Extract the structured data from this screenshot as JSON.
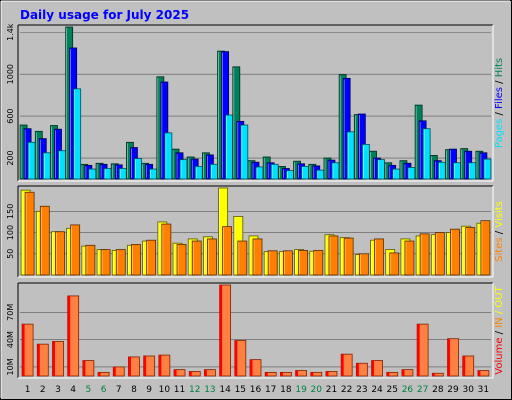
{
  "chart_data": {
    "type": "bar",
    "title": "Daily usage for July 2025",
    "categories": [
      "1",
      "2",
      "3",
      "4",
      "5",
      "6",
      "7",
      "8",
      "9",
      "10",
      "11",
      "12",
      "13",
      "14",
      "15",
      "16",
      "17",
      "18",
      "19",
      "20",
      "21",
      "22",
      "23",
      "24",
      "25",
      "26",
      "27",
      "28",
      "29",
      "30",
      "31"
    ],
    "weekend_days": [
      "5",
      "6",
      "12",
      "13",
      "19",
      "20",
      "26",
      "27"
    ],
    "colors": {
      "background": "#c0c0c0",
      "border_light": "#ffffff",
      "border_dark": "#000000",
      "title": "#0000ff",
      "tick_label": "#000000",
      "weekend_label": "#008040",
      "hits": "#00805a",
      "files": "#0000ff",
      "pages": "#00e0ff",
      "visits": "#ffff00",
      "sites": "#ff8000",
      "kbin": "#ff8000",
      "kbout": "#ffff00",
      "volume": "#ff0000",
      "volume_fill": "#ff8040"
    },
    "panels": [
      {
        "id": "hits-files-pages",
        "y_ticks": [
          "1.4k",
          "1000",
          "600",
          "200"
        ],
        "y_tick_values": [
          1400,
          1000,
          600,
          200
        ],
        "ylim": [
          0,
          1450
        ],
        "legend": [
          {
            "text": "Pages",
            "color_key": "pages"
          },
          {
            "text": " / ",
            "color_key": "tick_label"
          },
          {
            "text": "Files",
            "color_key": "files"
          },
          {
            "text": " / ",
            "color_key": "tick_label"
          },
          {
            "text": "Hits",
            "color_key": "hits"
          }
        ],
        "series": [
          {
            "name": "Hits",
            "color_key": "hits",
            "values": [
              515,
              455,
              510,
              1450,
              140,
              150,
              145,
              350,
              150,
              975,
              285,
              210,
              250,
              1220,
              1070,
              175,
              210,
              120,
              170,
              140,
              200,
              995,
              615,
              265,
              155,
              175,
              705,
              225,
              280,
              290,
              265
            ]
          },
          {
            "name": "Files",
            "color_key": "files",
            "values": [
              480,
              385,
              475,
              1250,
              130,
              140,
              135,
              300,
              140,
              925,
              250,
              190,
              230,
              1215,
              550,
              160,
              155,
              100,
              145,
              125,
              180,
              960,
              620,
              200,
              130,
              150,
              555,
              175,
              285,
              265,
              250
            ]
          },
          {
            "name": "Pages",
            "color_key": "pages",
            "values": [
              350,
              250,
              270,
              860,
              95,
              100,
              100,
              195,
              95,
              440,
              185,
              120,
              140,
              610,
              515,
              115,
              140,
              80,
              120,
              85,
              155,
              450,
              330,
              185,
              95,
              110,
              480,
              160,
              155,
              155,
              190
            ]
          }
        ]
      },
      {
        "id": "visits-sites",
        "y_ticks": [
          "150",
          "100",
          "50"
        ],
        "y_tick_values": [
          150,
          100,
          50
        ],
        "ylim": [
          0,
          205
        ],
        "legend": [
          {
            "text": "Sites",
            "color_key": "sites"
          },
          {
            "text": " / ",
            "color_key": "tick_label"
          },
          {
            "text": "Visits",
            "color_key": "visits"
          }
        ],
        "series": [
          {
            "name": "Visits",
            "color_key": "visits",
            "values": [
              200,
              150,
              102,
              110,
              68,
              60,
              58,
              70,
              80,
              125,
              75,
              85,
              90,
              205,
              138,
              92,
              55,
              55,
              60,
              56,
              95,
              88,
              48,
              82,
              60,
              85,
              92,
              95,
              100,
              115,
              122
            ]
          },
          {
            "name": "Sites",
            "color_key": "sites",
            "values": [
              195,
              162,
              102,
              118,
              70,
              60,
              60,
              72,
              82,
              120,
              72,
              80,
              85,
              114,
              80,
              85,
              57,
              57,
              58,
              58,
              92,
              87,
              50,
              85,
              52,
              80,
              97,
              100,
              108,
              112,
              128
            ]
          }
        ]
      },
      {
        "id": "volume",
        "y_ticks": [
          "70M",
          "40M",
          "10M"
        ],
        "y_tick_values": [
          70,
          40,
          10
        ],
        "ylim": [
          0,
          100
        ],
        "legend": [
          {
            "text": "Volume",
            "color_key": "volume"
          },
          {
            "text": " / ",
            "color_key": "tick_label"
          },
          {
            "text": "IN",
            "color_key": "kbin"
          },
          {
            "text": " / ",
            "color_key": "kbout"
          },
          {
            "text": "OUT",
            "color_key": "kbout"
          }
        ],
        "series": [
          {
            "name": "Volume",
            "color_key": "volume",
            "values": [
              57,
              35,
              38,
              88,
              17,
              4,
              10,
              21,
              22,
              23,
              7,
              5,
              7,
              100,
              39,
              18,
              4,
              4,
              6,
              4,
              5,
              24,
              14,
              17,
              4,
              7,
              57,
              3,
              41,
              22,
              6
            ]
          }
        ]
      }
    ]
  }
}
